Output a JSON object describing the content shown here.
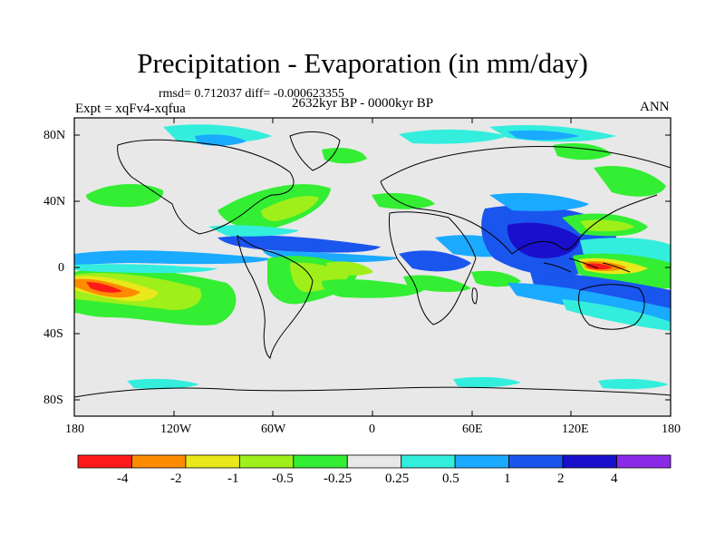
{
  "title": "Precipitation - Evaporation (in mm/day)",
  "stats": "rmsd= 0.712037  diff= -0.000623355",
  "experiment": "Expt = xqFv4-xqfua",
  "period": "2632kyr BP - 0000kyr BP",
  "season": "ANN",
  "axes": {
    "lat_ticks": [
      "80N",
      "40N",
      "0",
      "40S",
      "80S"
    ],
    "lon_ticks": [
      "180",
      "120W",
      "60W",
      "0",
      "60E",
      "120E",
      "180"
    ]
  },
  "colorbar": {
    "levels": [
      "-4",
      "-2",
      "-1",
      "-0.5",
      "-0.25",
      "0.25",
      "0.5",
      "1",
      "2",
      "4"
    ],
    "colors": [
      "#ff1a1a",
      "#ff8c00",
      "#e8e81a",
      "#9fef1a",
      "#33ee33",
      "#e8e8e8",
      "#33eedd",
      "#1aaaff",
      "#1a55ee",
      "#1a10cc",
      "#8b2be8"
    ]
  },
  "colors": {
    "background": "#e8e8e8",
    "coastline": "#000000"
  }
}
